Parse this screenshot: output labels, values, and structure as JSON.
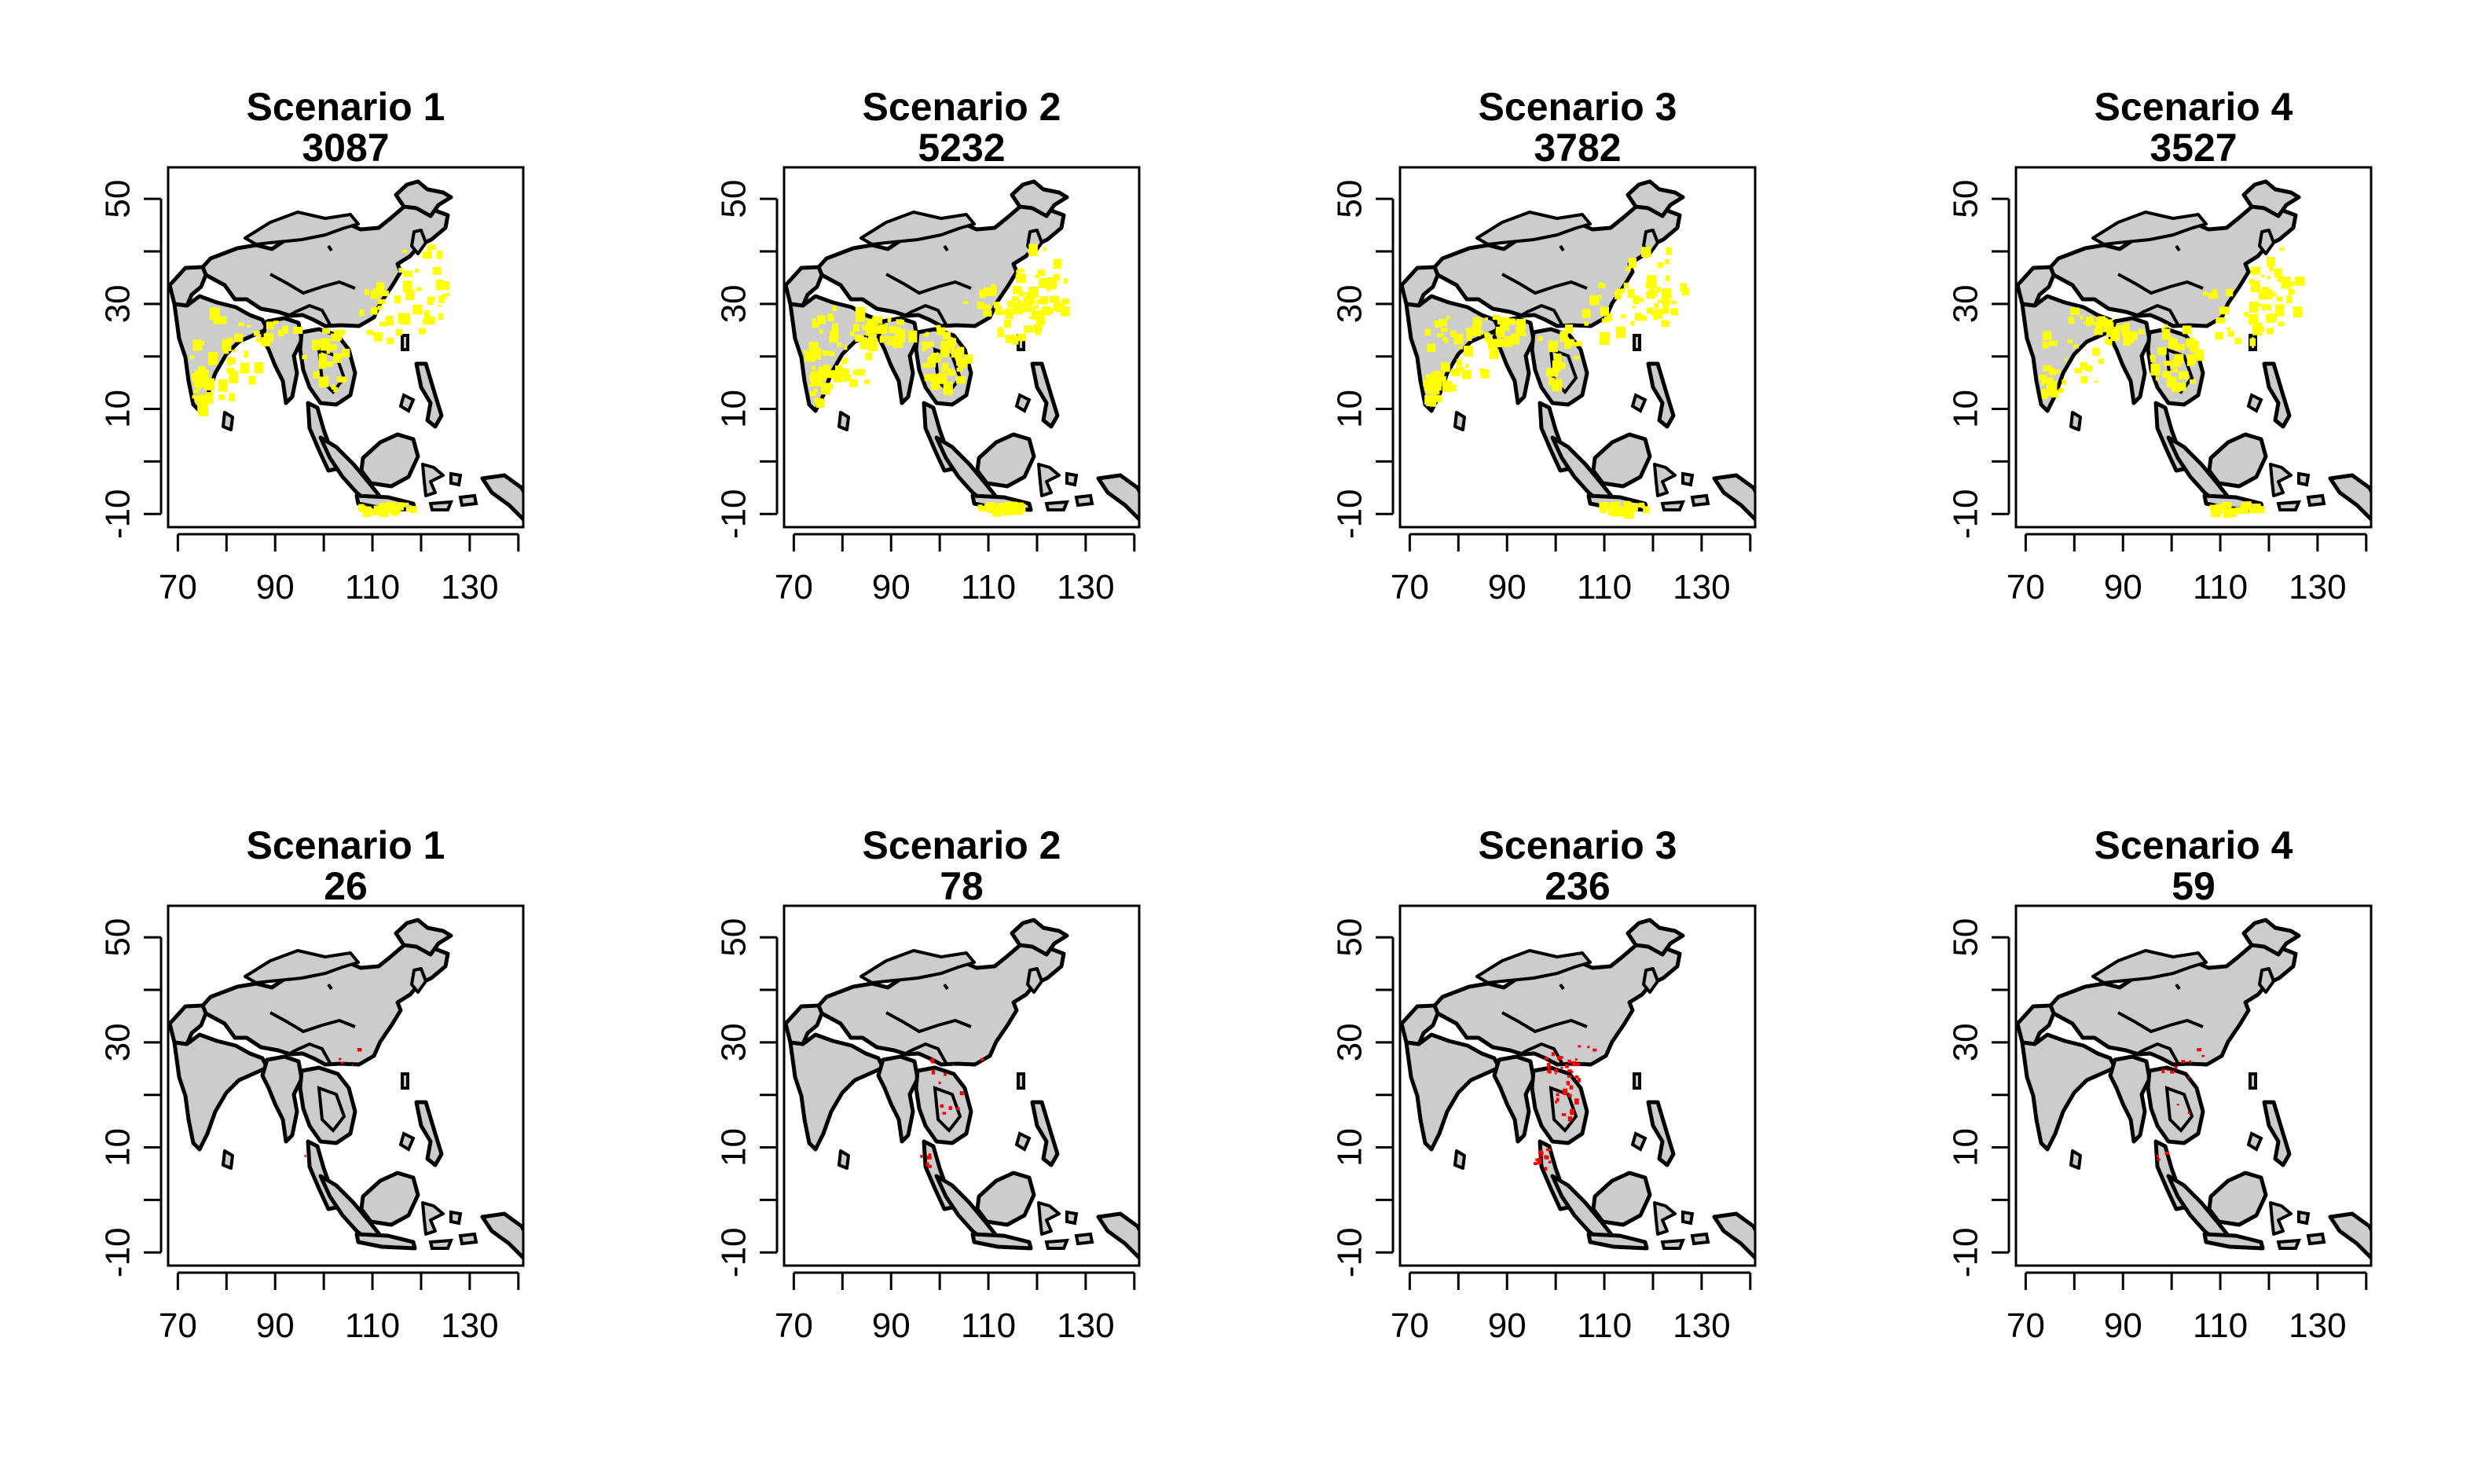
{
  "figure": {
    "panels": [
      {
        "title": "Scenario 1",
        "value": "3087",
        "overlay": "yellow",
        "density": 1.0,
        "row": 0
      },
      {
        "title": "Scenario 2",
        "value": "5232",
        "overlay": "yellow",
        "density": 1.7,
        "row": 0
      },
      {
        "title": "Scenario 3",
        "value": "3782",
        "overlay": "yellow",
        "density": 1.2,
        "row": 0
      },
      {
        "title": "Scenario 4",
        "value": "3527",
        "overlay": "yellow",
        "density": 1.15,
        "row": 0
      },
      {
        "title": "Scenario 1",
        "value": "26",
        "overlay": "red",
        "density": 0.1,
        "row": 1
      },
      {
        "title": "Scenario 2",
        "value": "78",
        "overlay": "red",
        "density": 0.3,
        "row": 1
      },
      {
        "title": "Scenario 3",
        "value": "236",
        "overlay": "red",
        "density": 1.0,
        "row": 1
      },
      {
        "title": "Scenario 4",
        "value": "59",
        "overlay": "red",
        "density": 0.25,
        "row": 1
      }
    ],
    "x_ticks": [
      "70",
      "90",
      "110",
      "130"
    ],
    "y_ticks": [
      "50",
      "30",
      "10",
      "-10"
    ],
    "x_tick_values": [
      70,
      90,
      110,
      130
    ],
    "y_tick_values": [
      50,
      30,
      10,
      -10
    ],
    "x_range": [
      68,
      141
    ],
    "y_range": [
      -12.5,
      56
    ],
    "colors": {
      "land": "#cccccc",
      "border": "#000000",
      "suitable": "#ffff00",
      "hotspot": "#ff0000"
    }
  }
}
